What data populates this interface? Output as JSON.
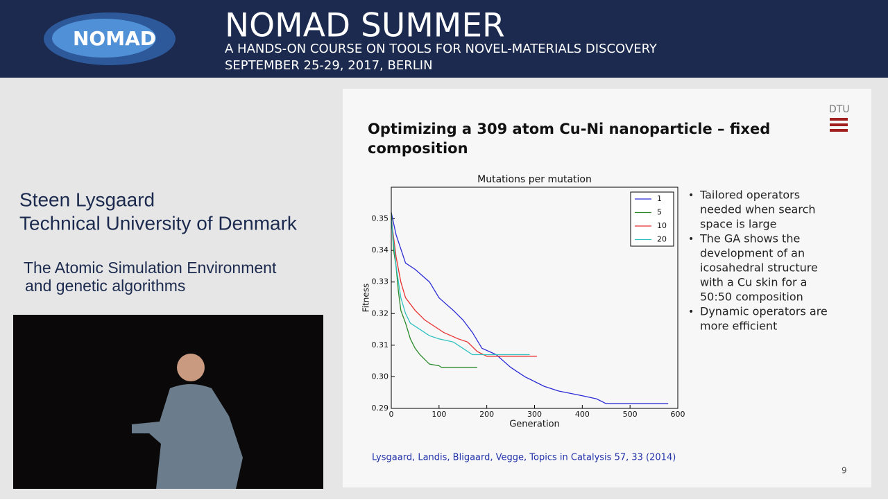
{
  "header": {
    "logo": "NOMAD",
    "title": "NOMAD SUMMER",
    "subtitle_lines": [
      "A HANDS-ON COURSE ON TOOLS FOR NOVEL-MATERIALS DISCOVERY",
      "SEPTEMBER 25-29, 2017, BERLIN"
    ]
  },
  "speaker": {
    "name": "Steen Lysgaard",
    "affiliation": "Technical University of Denmark",
    "talk_lines": [
      "The Atomic Simulation Environment",
      "and genetic algorithms"
    ]
  },
  "slide": {
    "logo": "DTU",
    "title_lines": [
      "Optimizing a 309 atom Cu-Ni nanoparticle – fixed",
      "composition"
    ],
    "bullets": [
      [
        "Tailored operators",
        "needed when search",
        "space is large"
      ],
      [
        "The GA shows the",
        "development of an",
        "icosahedral structure",
        "with a Cu skin for a",
        "50:50 composition"
      ],
      [
        "Dynamic operators are",
        "more efficient"
      ]
    ],
    "citation": "Lysgaard, Landis, Bligaard, Vegge, Topics in Catalysis 57, 33 (2014)",
    "page_number": "9"
  },
  "chart_data": {
    "type": "line",
    "title": "Mutations per mutation",
    "xlabel": "Generation",
    "ylabel": "Fitness",
    "xlim": [
      0,
      600
    ],
    "ylim": [
      0.29,
      0.36
    ],
    "xticks": [
      0,
      100,
      200,
      300,
      400,
      500,
      600
    ],
    "yticks": [
      {
        "value": 0.29,
        "label": "0.29"
      },
      {
        "value": 0.3,
        "label": "0.30"
      },
      0.31,
      0.32,
      0.33,
      0.34,
      0.35
    ],
    "legend": "upper right",
    "series": [
      {
        "name": "1",
        "color": "#2b2bd6",
        "x": [
          0,
          10,
          30,
          50,
          80,
          100,
          130,
          150,
          170,
          190,
          220,
          250,
          280,
          320,
          350,
          400,
          430,
          450,
          580
        ],
        "values": [
          0.352,
          0.345,
          0.336,
          0.334,
          0.33,
          0.325,
          0.321,
          0.318,
          0.314,
          0.309,
          0.307,
          0.303,
          0.3,
          0.297,
          0.2955,
          0.294,
          0.293,
          0.2915,
          0.2915
        ]
      },
      {
        "name": "5",
        "color": "#2a8a2a",
        "x": [
          0,
          5,
          10,
          15,
          20,
          30,
          40,
          50,
          60,
          80,
          100,
          105,
          180
        ],
        "values": [
          0.352,
          0.34,
          0.335,
          0.327,
          0.321,
          0.317,
          0.312,
          0.309,
          0.307,
          0.304,
          0.3035,
          0.303,
          0.303
        ]
      },
      {
        "name": "10",
        "color": "#e83030",
        "x": [
          0,
          10,
          20,
          30,
          50,
          70,
          90,
          110,
          140,
          160,
          180,
          200,
          305
        ],
        "values": [
          0.35,
          0.338,
          0.33,
          0.325,
          0.321,
          0.318,
          0.316,
          0.314,
          0.312,
          0.311,
          0.308,
          0.3065,
          0.3065
        ]
      },
      {
        "name": "20",
        "color": "#30c0c0",
        "x": [
          0,
          10,
          20,
          30,
          40,
          60,
          80,
          100,
          130,
          150,
          170,
          180,
          290
        ],
        "values": [
          0.35,
          0.335,
          0.325,
          0.32,
          0.317,
          0.315,
          0.313,
          0.312,
          0.311,
          0.309,
          0.307,
          0.307,
          0.307
        ]
      }
    ]
  }
}
